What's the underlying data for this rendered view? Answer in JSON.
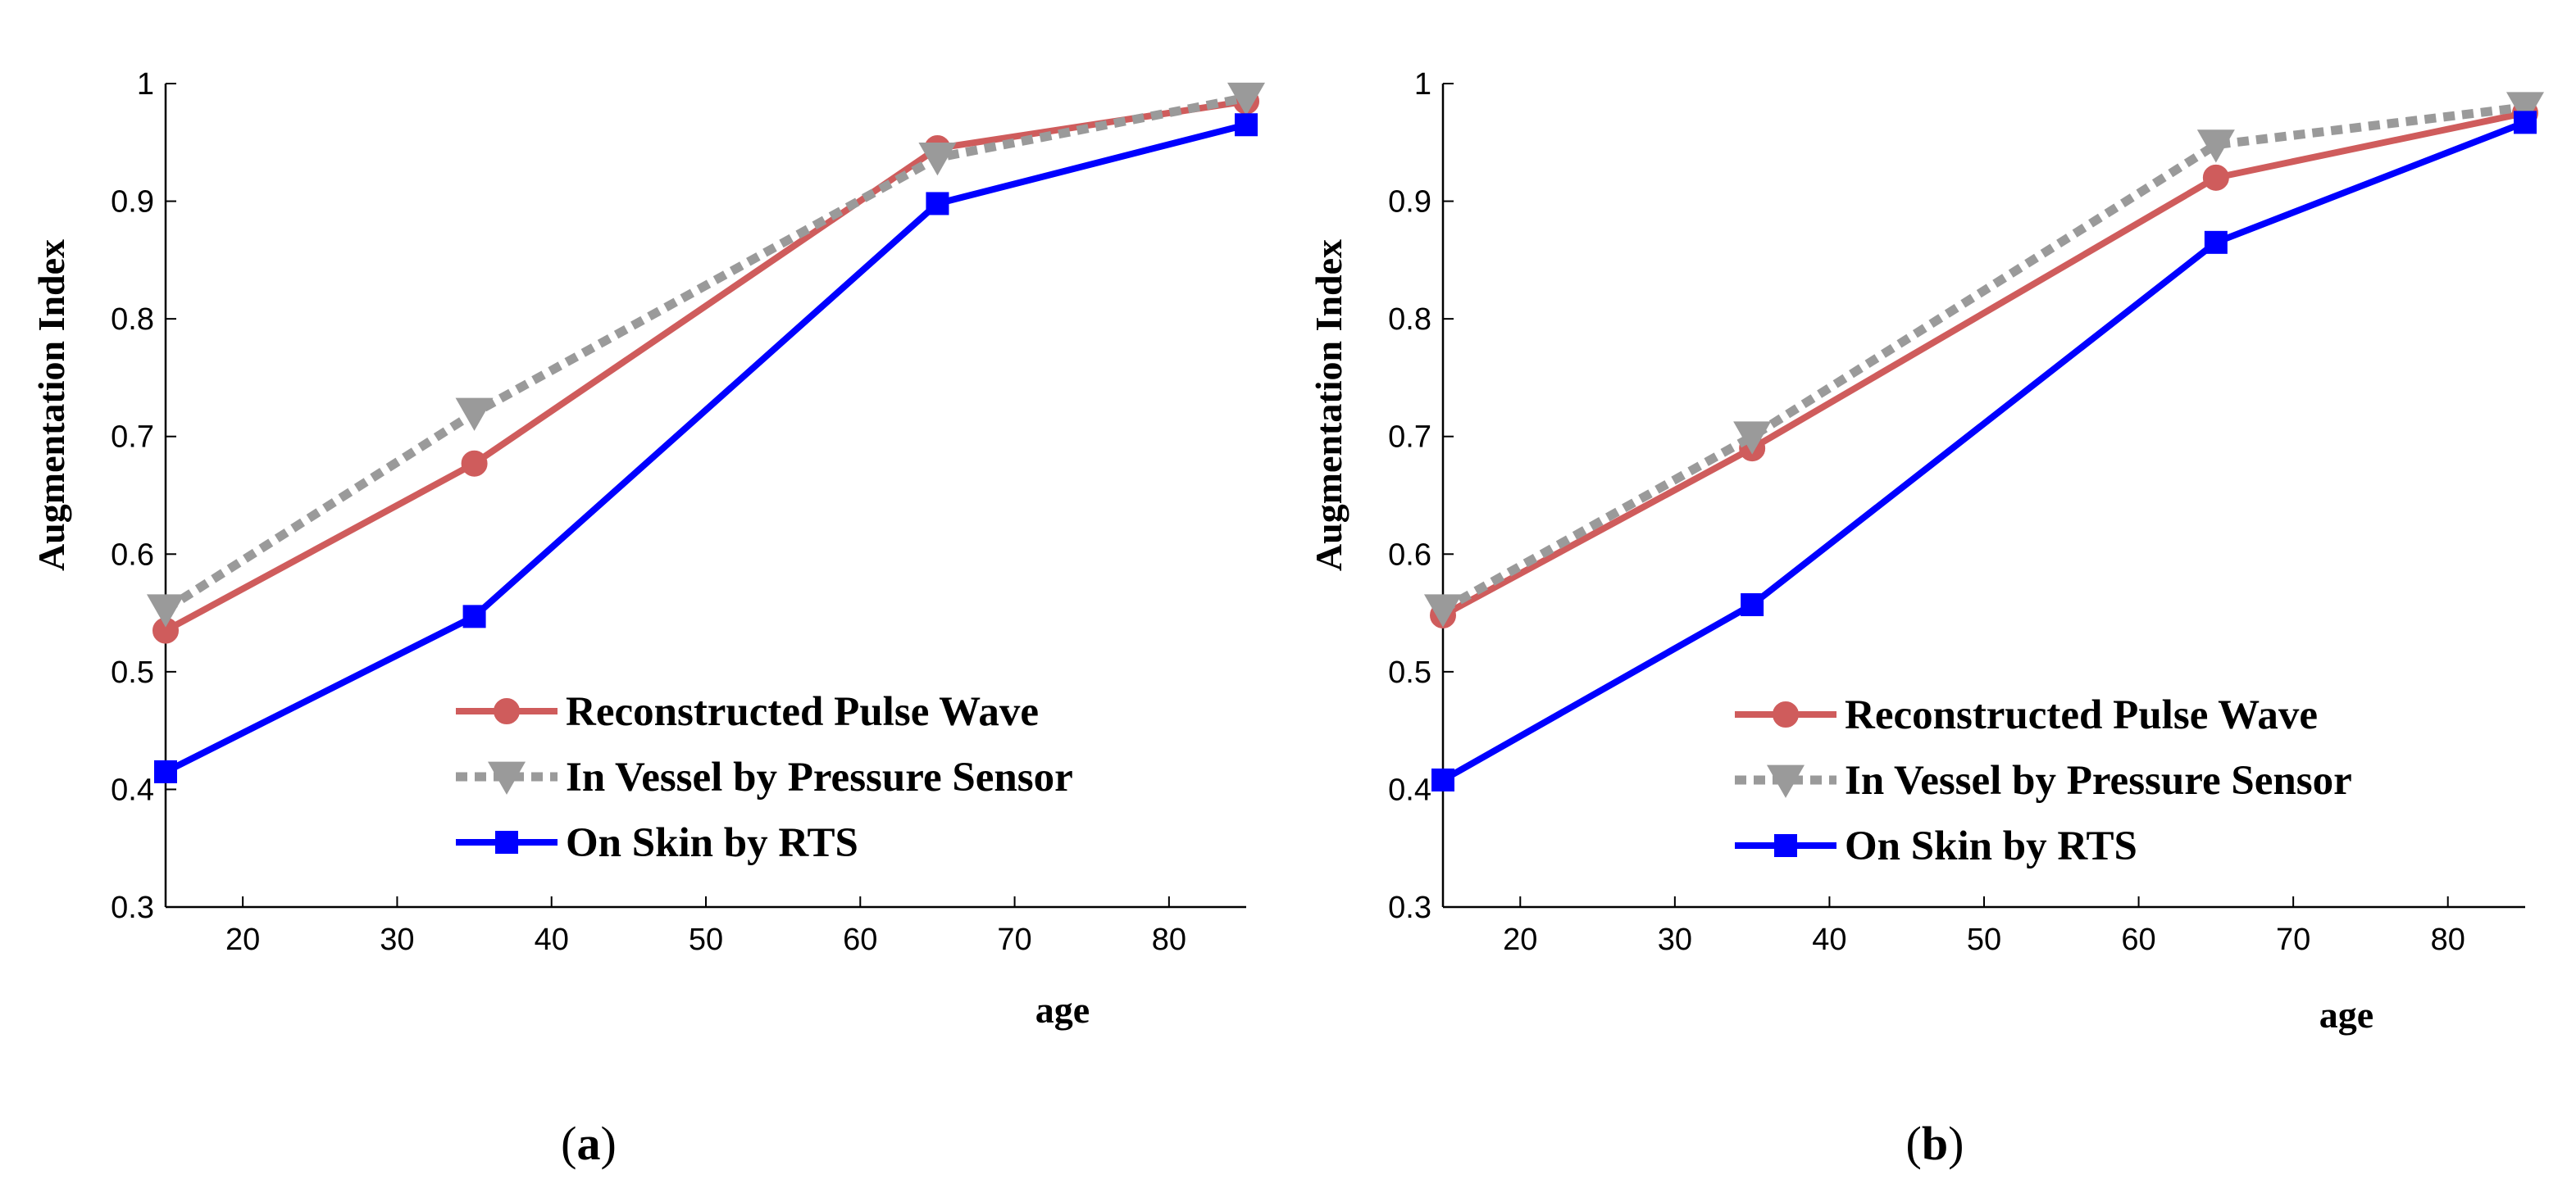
{
  "chart_data": [
    {
      "panel": "a",
      "caption_letter": "a",
      "type": "line",
      "xlabel": "age",
      "ylabel": "Augmentation Index",
      "xlim": [
        15,
        85
      ],
      "ylim": [
        0.3,
        1.0
      ],
      "xticks": [
        20,
        30,
        40,
        50,
        60,
        70,
        80
      ],
      "yticks": [
        0.3,
        0.4,
        0.5,
        0.6,
        0.7,
        0.8,
        0.9,
        1.0
      ],
      "ytick_labels": [
        "0.3",
        "0.4",
        "0.5",
        "0.6",
        "0.7",
        "0.8",
        "0.9",
        "1"
      ],
      "x": [
        15,
        35,
        65,
        85
      ],
      "legend_position": "lower-right",
      "grid": false,
      "series": [
        {
          "name": "Reconstructed Pulse Wave",
          "values": [
            0.535,
            0.677,
            0.945,
            0.985
          ],
          "color": "#cf5c5c",
          "marker": "circle",
          "dash": "solid"
        },
        {
          "name": "In Vessel by Pressure Sensor",
          "values": [
            0.553,
            0.72,
            0.937,
            0.988
          ],
          "color": "#9a9a9a",
          "marker": "triangle-down",
          "dash": "dotted"
        },
        {
          "name": "On Skin by RTS",
          "values": [
            0.415,
            0.547,
            0.898,
            0.965
          ],
          "color": "#0000ff",
          "marker": "square",
          "dash": "solid"
        }
      ]
    },
    {
      "panel": "b",
      "caption_letter": "b",
      "type": "line",
      "xlabel": "age",
      "ylabel": "Augmentation Index",
      "xlim": [
        15,
        85
      ],
      "ylim": [
        0.3,
        1.0
      ],
      "xticks": [
        20,
        30,
        40,
        50,
        60,
        70,
        80
      ],
      "yticks": [
        0.3,
        0.4,
        0.5,
        0.6,
        0.7,
        0.8,
        0.9,
        1.0
      ],
      "ytick_labels": [
        "0.3",
        "0.4",
        "0.5",
        "0.6",
        "0.7",
        "0.8",
        "0.9",
        "1"
      ],
      "x": [
        15,
        35,
        65,
        85
      ],
      "legend_position": "lower-right",
      "grid": false,
      "series": [
        {
          "name": "Reconstructed Pulse Wave",
          "values": [
            0.548,
            0.69,
            0.92,
            0.975
          ],
          "color": "#cf5c5c",
          "marker": "circle",
          "dash": "solid"
        },
        {
          "name": "In Vessel by Pressure Sensor",
          "values": [
            0.553,
            0.7,
            0.948,
            0.98
          ],
          "color": "#9a9a9a",
          "marker": "triangle-down",
          "dash": "dotted"
        },
        {
          "name": "On Skin by RTS",
          "values": [
            0.408,
            0.557,
            0.865,
            0.967
          ],
          "color": "#0000ff",
          "marker": "square",
          "dash": "solid"
        }
      ]
    }
  ]
}
